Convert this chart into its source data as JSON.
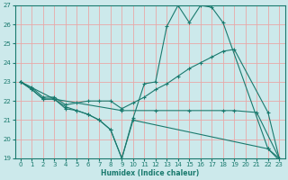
{
  "xlabel": "Humidex (Indice chaleur)",
  "xlim": [
    -0.5,
    23.5
  ],
  "ylim": [
    19,
    27
  ],
  "xticks": [
    0,
    1,
    2,
    3,
    4,
    5,
    6,
    7,
    8,
    9,
    10,
    11,
    12,
    13,
    14,
    15,
    16,
    17,
    18,
    19,
    20,
    21,
    22,
    23
  ],
  "yticks": [
    19,
    20,
    21,
    22,
    23,
    24,
    25,
    26,
    27
  ],
  "bg_color": "#cce9eb",
  "line_color": "#1a7a6e",
  "grid_color": "#e8a8a8",
  "lines": [
    {
      "x": [
        0,
        1,
        2,
        3,
        4,
        5,
        6,
        7,
        8,
        9,
        10,
        11,
        12,
        13,
        14,
        15,
        16,
        17,
        18,
        22,
        23
      ],
      "y": [
        23.0,
        22.6,
        22.1,
        22.1,
        21.7,
        21.5,
        21.3,
        21.0,
        20.5,
        19.0,
        21.1,
        22.9,
        23.0,
        25.9,
        27.0,
        26.1,
        27.0,
        26.9,
        26.1,
        19.5,
        19.0
      ]
    },
    {
      "x": [
        0,
        1,
        2,
        3,
        4,
        5,
        6,
        7,
        8,
        9,
        10,
        11,
        12,
        13,
        14,
        15,
        16,
        17,
        18,
        19,
        22,
        23
      ],
      "y": [
        23.0,
        22.7,
        22.2,
        22.2,
        21.8,
        21.9,
        22.0,
        22.0,
        22.0,
        21.6,
        21.9,
        22.2,
        22.6,
        22.9,
        23.3,
        23.7,
        24.0,
        24.3,
        24.6,
        24.7,
        21.4,
        19.0
      ]
    },
    {
      "x": [
        0,
        3,
        9,
        12,
        15,
        18,
        19,
        21,
        23
      ],
      "y": [
        23.0,
        22.1,
        21.5,
        21.5,
        21.5,
        21.5,
        21.5,
        21.4,
        19.0
      ]
    },
    {
      "x": [
        0,
        1,
        2,
        3,
        4,
        5,
        6,
        7,
        8,
        9,
        10,
        22,
        23
      ],
      "y": [
        23.0,
        22.6,
        22.1,
        22.1,
        21.6,
        21.5,
        21.3,
        21.0,
        20.5,
        19.0,
        21.0,
        19.5,
        18.9
      ]
    }
  ]
}
